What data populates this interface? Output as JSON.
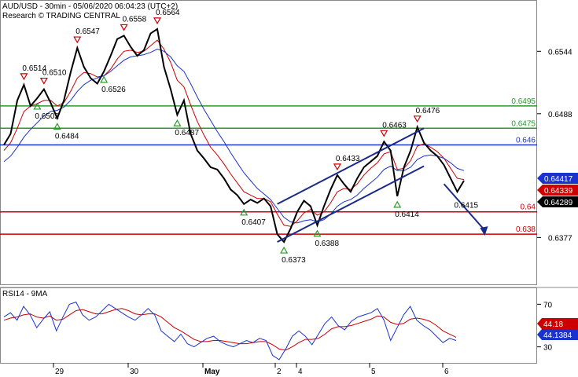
{
  "header": {
    "line1": "AUD/USD - 30min - 05/06/2020 06:04:23 (UTC+2)",
    "line2": "Research © TRADING CENTRAL"
  },
  "chart_data": {
    "type": "line",
    "symbol": "AUD/USD",
    "timeframe": "30min",
    "x_ticks": [
      "29",
      "30",
      "May",
      "2",
      "4",
      "5",
      "6"
    ],
    "y_ticks": [
      0.6544,
      0.6488,
      0.6377
    ],
    "ylim": [
      0.6335,
      0.659
    ],
    "price_series": [
      {
        "name": "close",
        "values": [
          0.646,
          0.647,
          0.65,
          0.6514,
          0.6495,
          0.6502,
          0.651,
          0.6498,
          0.6484,
          0.65,
          0.6525,
          0.6547,
          0.653,
          0.652,
          0.6515,
          0.6526,
          0.654,
          0.6555,
          0.6558,
          0.6548,
          0.654,
          0.6545,
          0.656,
          0.6564,
          0.653,
          0.651,
          0.6487,
          0.65,
          0.647,
          0.6455,
          0.6448,
          0.644,
          0.6438,
          0.643,
          0.642,
          0.6415,
          0.6407,
          0.6411,
          0.6408,
          0.6412,
          0.6405,
          0.638,
          0.6373,
          0.6385,
          0.64,
          0.641,
          0.6405,
          0.6388,
          0.6405,
          0.642,
          0.6433,
          0.6425,
          0.6418,
          0.643,
          0.644,
          0.6445,
          0.645,
          0.6463,
          0.6455,
          0.6414,
          0.644,
          0.6455,
          0.6476,
          0.6462,
          0.6455,
          0.645,
          0.6442,
          0.643,
          0.6418,
          0.6428
        ]
      }
    ],
    "moving_averages": [
      {
        "color": "#cc0000",
        "values": [
          0.6455,
          0.6462,
          0.6475,
          0.649,
          0.6495,
          0.6497,
          0.65,
          0.65,
          0.6495,
          0.6498,
          0.6508,
          0.652,
          0.6525,
          0.6524,
          0.6521,
          0.6522,
          0.6528,
          0.6537,
          0.6544,
          0.6545,
          0.6543,
          0.6544,
          0.6549,
          0.6554,
          0.6546,
          0.6534,
          0.6518,
          0.6512,
          0.6496,
          0.6481,
          0.6469,
          0.6458,
          0.6451,
          0.6443,
          0.6434,
          0.6426,
          0.6418,
          0.6415,
          0.6412,
          0.6412,
          0.6409,
          0.6398,
          0.6388,
          0.6387,
          0.6392,
          0.6399,
          0.6402,
          0.6397,
          0.64,
          0.6408,
          0.6418,
          0.6421,
          0.642,
          0.6425,
          0.6433,
          0.6439,
          0.6444,
          0.6452,
          0.6454,
          0.6438,
          0.6439,
          0.6446,
          0.6459,
          0.6461,
          0.6458,
          0.6454,
          0.6448,
          0.6439,
          0.643,
          0.6429
        ]
      },
      {
        "color": "#1a33cc",
        "values": [
          0.6445,
          0.645,
          0.6458,
          0.6467,
          0.6474,
          0.648,
          0.6486,
          0.649,
          0.6491,
          0.6494,
          0.65,
          0.6508,
          0.6514,
          0.6518,
          0.652,
          0.6522,
          0.6526,
          0.6531,
          0.6536,
          0.6539,
          0.654,
          0.6541,
          0.6543,
          0.6546,
          0.6544,
          0.6539,
          0.6531,
          0.6526,
          0.6515,
          0.6503,
          0.6492,
          0.6482,
          0.6472,
          0.6463,
          0.6453,
          0.6444,
          0.6435,
          0.6428,
          0.6421,
          0.6416,
          0.6411,
          0.6403,
          0.6395,
          0.6391,
          0.639,
          0.6392,
          0.6393,
          0.6391,
          0.6393,
          0.6398,
          0.6405,
          0.6409,
          0.6411,
          0.6415,
          0.6421,
          0.6426,
          0.6431,
          0.6438,
          0.6441,
          0.6437,
          0.6437,
          0.644,
          0.6447,
          0.645,
          0.6451,
          0.645,
          0.6448,
          0.6444,
          0.6439,
          0.6437
        ]
      }
    ],
    "horizontal_levels": [
      {
        "value": 0.6495,
        "label": "0.6495",
        "color": "#2a9a2a"
      },
      {
        "value": 0.6475,
        "label": "0.6475",
        "color": "#2a9a2a"
      },
      {
        "value": 0.646,
        "label": "0.646",
        "color": "#1a33cc"
      },
      {
        "value": 0.64,
        "label": "0.64",
        "color": "#cc0000"
      },
      {
        "value": 0.638,
        "label": "0.638",
        "color": "#cc0000"
      }
    ],
    "channel": {
      "color": "#1a2a8a",
      "start_index": 41,
      "end_index": 63,
      "lower": [
        0.6373,
        0.6441
      ],
      "upper": [
        0.6407,
        0.6475
      ]
    },
    "forecast_arrow": {
      "from_index": 66,
      "from_value": 0.6425,
      "to_index": 72,
      "to_value": 0.638,
      "color": "#1a2a8a"
    },
    "annotations": [
      {
        "text": "0.6514",
        "i": 3,
        "v": 0.6514,
        "marker": "down"
      },
      {
        "text": "0.6510",
        "i": 6,
        "v": 0.651,
        "marker": "down"
      },
      {
        "text": "0.6547",
        "i": 11,
        "v": 0.6547,
        "marker": "down"
      },
      {
        "text": "0.6558",
        "i": 18,
        "v": 0.6558,
        "marker": "down"
      },
      {
        "text": "0.6564",
        "i": 23,
        "v": 0.6564,
        "marker": "down"
      },
      {
        "text": "0.6433",
        "i": 50,
        "v": 0.6433,
        "marker": "down"
      },
      {
        "text": "0.6463",
        "i": 57,
        "v": 0.6463,
        "marker": "down"
      },
      {
        "text": "0.6476",
        "i": 62,
        "v": 0.6476,
        "marker": "down"
      },
      {
        "text": "0.6484",
        "i": 8,
        "v": 0.6484,
        "marker": "up"
      },
      {
        "text": "0.6502",
        "i": 5,
        "v": 0.6502,
        "marker": "up"
      },
      {
        "text": "0.6526",
        "i": 15,
        "v": 0.6526,
        "marker": "up"
      },
      {
        "text": "0.6487",
        "i": 26,
        "v": 0.6487,
        "marker": "up"
      },
      {
        "text": "0.6407",
        "i": 36,
        "v": 0.6407,
        "marker": "up"
      },
      {
        "text": "0.6373",
        "i": 42,
        "v": 0.6373,
        "marker": "up"
      },
      {
        "text": "0.6388",
        "i": 47,
        "v": 0.6388,
        "marker": "up"
      },
      {
        "text": "0.6414",
        "i": 59,
        "v": 0.6414,
        "marker": "up"
      },
      {
        "text": "0.6415",
        "i": 68,
        "v": 0.6415,
        "marker": "none"
      }
    ],
    "price_tags": [
      {
        "text": "0.64417",
        "color": "#1a33cc"
      },
      {
        "text": "0.64339",
        "color": "#cc0000"
      },
      {
        "text": "0.64289",
        "color": "#000000"
      }
    ],
    "rsi": {
      "title": "RSI14 - 9MA",
      "y_ticks": [
        70,
        30
      ],
      "ylim": [
        15,
        85
      ],
      "rsi_values": [
        58,
        62,
        55,
        68,
        60,
        48,
        56,
        63,
        45,
        58,
        70,
        72,
        60,
        55,
        58,
        64,
        70,
        66,
        62,
        58,
        55,
        60,
        66,
        60,
        45,
        40,
        35,
        42,
        33,
        30,
        34,
        38,
        40,
        35,
        32,
        30,
        33,
        36,
        34,
        38,
        36,
        22,
        18,
        28,
        40,
        45,
        40,
        32,
        42,
        52,
        58,
        50,
        46,
        54,
        58,
        60,
        62,
        66,
        55,
        36,
        48,
        60,
        68,
        55,
        50,
        46,
        40,
        34,
        38,
        36
      ],
      "ma_values": [
        55,
        57,
        58,
        60,
        61,
        58,
        57,
        59,
        55,
        56,
        60,
        64,
        65,
        63,
        61,
        61,
        63,
        65,
        66,
        64,
        61,
        60,
        61,
        61,
        58,
        53,
        48,
        45,
        41,
        37,
        35,
        35,
        36,
        36,
        35,
        34,
        33,
        33,
        34,
        35,
        35,
        32,
        28,
        27,
        30,
        34,
        37,
        37,
        38,
        42,
        47,
        49,
        49,
        50,
        52,
        54,
        56,
        59,
        58,
        53,
        51,
        52,
        56,
        57,
        56,
        54,
        50,
        45,
        42,
        39
      ],
      "tags": [
        {
          "text": "44.18",
          "color": "#cc0000"
        },
        {
          "text": "44.1384",
          "color": "#1a33cc"
        }
      ]
    }
  }
}
